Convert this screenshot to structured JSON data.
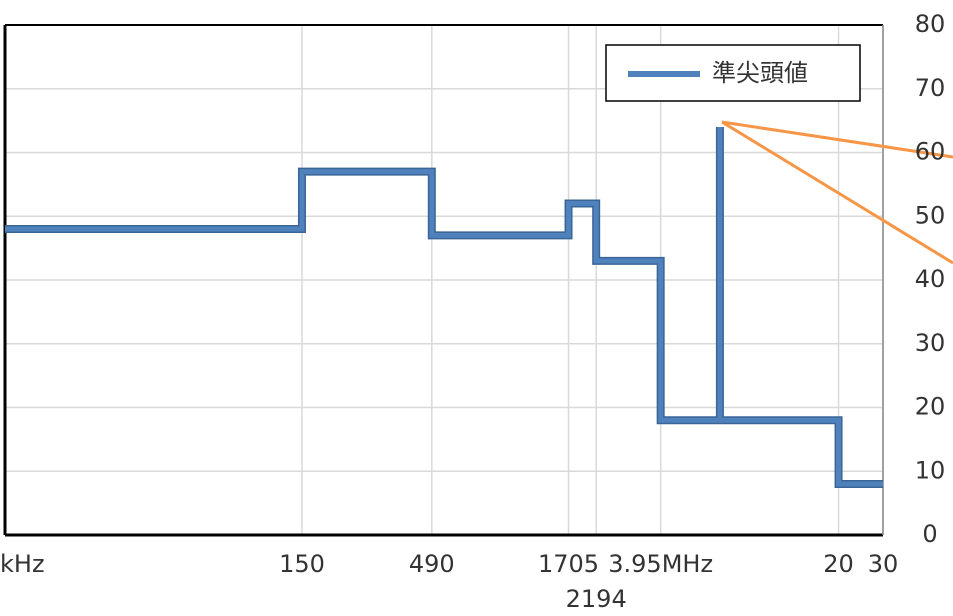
{
  "chart_data": {
    "type": "line",
    "log_x": true,
    "grid": true,
    "legend": "top-right",
    "xlim": [
      10,
      30000
    ],
    "xticks": [
      {
        "value": 10,
        "label": "kHz"
      },
      150,
      490,
      1705,
      2194,
      {
        "value": 3950,
        "label": "3.95MHz"
      },
      {
        "value": 20000,
        "label": "20"
      },
      {
        "value": 30000,
        "label": "30"
      }
    ],
    "ylim": [
      0,
      80
    ],
    "yticks": [
      0,
      10,
      20,
      30,
      40,
      50,
      60,
      70,
      80
    ],
    "x": [
      10,
      150,
      150,
      490,
      490,
      1705,
      1705,
      2194,
      2194,
      3950,
      3950,
      6780,
      6780,
      6780,
      20000,
      20000,
      30000
    ],
    "series": [
      {
        "name": "準尖頭値",
        "color": "#4f81bd",
        "values": [
          48,
          48,
          57,
          57,
          47,
          47,
          52,
          52,
          43,
          43,
          18,
          18,
          64,
          18,
          18,
          8,
          8
        ]
      }
    ]
  }
}
